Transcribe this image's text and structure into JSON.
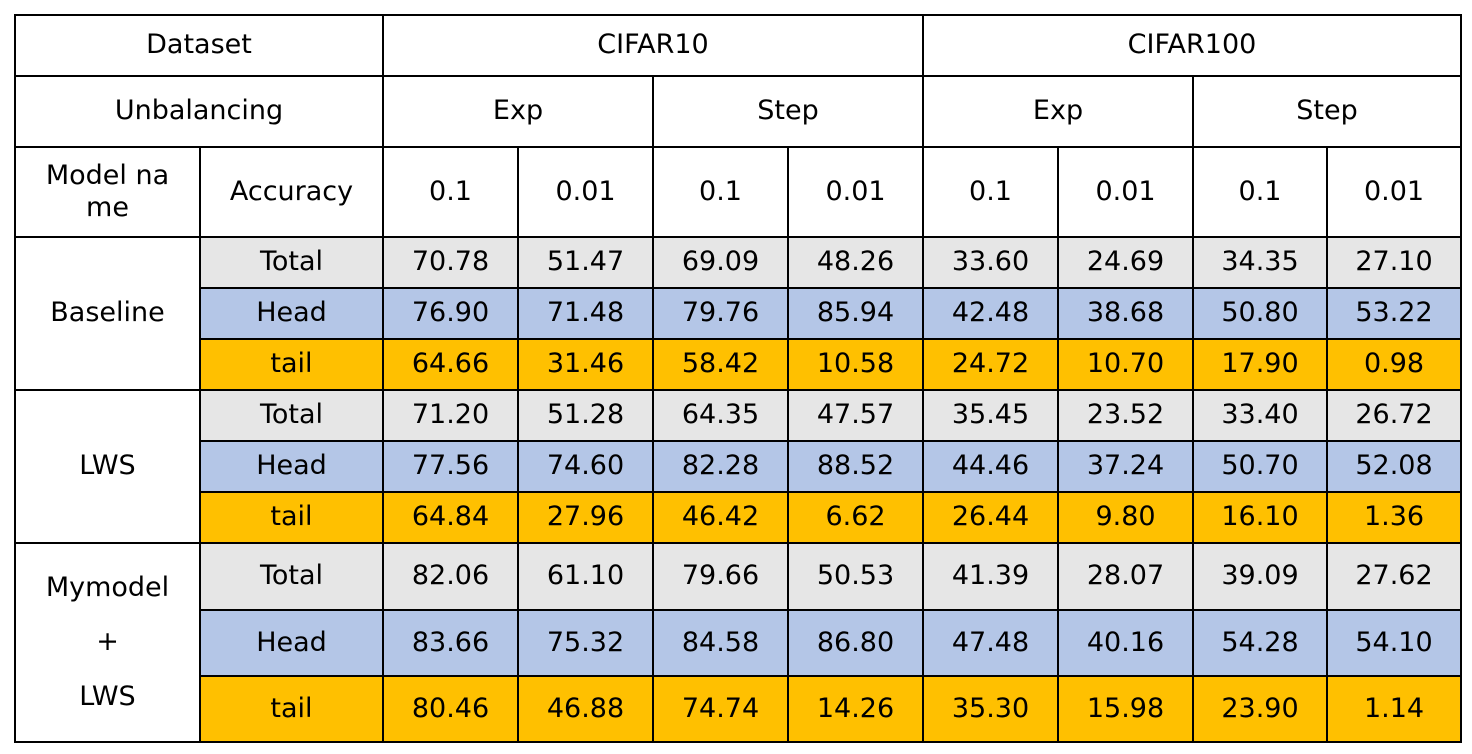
{
  "header": {
    "dataset_label": "Dataset",
    "unbalancing_label": "Unbalancing",
    "model_label_line1": "Model na",
    "model_label_line2": "me",
    "accuracy_label": "Accuracy",
    "datasets": [
      "CIFAR10",
      "CIFAR100"
    ],
    "unbalancing": [
      "Exp",
      "Step",
      "Exp",
      "Step"
    ],
    "ratios": [
      "0.1",
      "0.01",
      "0.1",
      "0.01",
      "0.1",
      "0.01",
      "0.1",
      "0.01"
    ]
  },
  "models": [
    {
      "name_lines": [
        "Baseline"
      ],
      "rows": [
        {
          "metric": "Total",
          "values": [
            "70.78",
            "51.47",
            "69.09",
            "48.26",
            "33.60",
            "24.69",
            "34.35",
            "27.10"
          ]
        },
        {
          "metric": "Head",
          "values": [
            "76.90",
            "71.48",
            "79.76",
            "85.94",
            "42.48",
            "38.68",
            "50.80",
            "53.22"
          ]
        },
        {
          "metric": "tail",
          "values": [
            "64.66",
            "31.46",
            "58.42",
            "10.58",
            "24.72",
            "10.70",
            "17.90",
            "0.98"
          ]
        }
      ]
    },
    {
      "name_lines": [
        "LWS"
      ],
      "rows": [
        {
          "metric": "Total",
          "values": [
            "71.20",
            "51.28",
            "64.35",
            "47.57",
            "35.45",
            "23.52",
            "33.40",
            "26.72"
          ]
        },
        {
          "metric": "Head",
          "values": [
            "77.56",
            "74.60",
            "82.28",
            "88.52",
            "44.46",
            "37.24",
            "50.70",
            "52.08"
          ]
        },
        {
          "metric": "tail",
          "values": [
            "64.84",
            "27.96",
            "46.42",
            "6.62",
            "26.44",
            "9.80",
            "16.10",
            "1.36"
          ]
        }
      ]
    },
    {
      "name_lines": [
        "Mymodel",
        "+",
        "LWS"
      ],
      "rows": [
        {
          "metric": "Total",
          "values": [
            "82.06",
            "61.10",
            "79.66",
            "50.53",
            "41.39",
            "28.07",
            "39.09",
            "27.62"
          ]
        },
        {
          "metric": "Head",
          "values": [
            "83.66",
            "75.32",
            "84.58",
            "86.80",
            "47.48",
            "40.16",
            "54.28",
            "54.10"
          ]
        },
        {
          "metric": "tail",
          "values": [
            "80.46",
            "46.88",
            "74.74",
            "14.26",
            "35.30",
            "15.98",
            "23.90",
            "1.14"
          ]
        }
      ]
    }
  ],
  "colors": {
    "total_row": "#e6e6e6",
    "head_row": "#b4c6e7",
    "tail_row": "#ffc000",
    "border": "#000000"
  }
}
